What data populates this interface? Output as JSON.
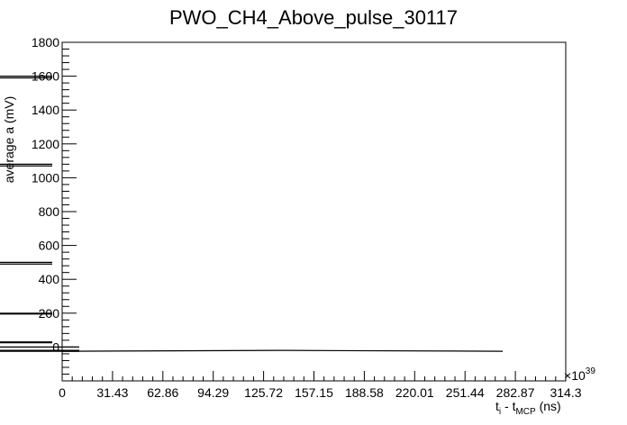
{
  "chart_data": {
    "type": "line",
    "title": "PWO_CH4_Above_pulse_30117",
    "ylabel": "average a  (mV)",
    "xlabel": {
      "main": "t",
      "sub1": "i",
      "mid": " - t",
      "sub2": "MCP",
      "unit": " (ns)"
    },
    "x_multiplier": {
      "symbol": "×",
      "base": "10",
      "exponent": "39"
    },
    "xlim": [
      0,
      314.3
    ],
    "ylim": [
      -200,
      1800
    ],
    "x_tick_labels": [
      "0",
      "31.43",
      "62.86",
      "94.29",
      "125.72",
      "157.15",
      "188.58",
      "220.01",
      "251.44",
      "282.87",
      "314.3"
    ],
    "y_tick_labels": [
      "0",
      "200",
      "400",
      "600",
      "800",
      "1000",
      "1200",
      "1400",
      "1600",
      "1800"
    ],
    "grid": false,
    "series": [
      {
        "points": [
          {
            "x": 0,
            "y": 1600
          },
          {
            "x": 0,
            "y": 1590
          },
          {
            "x": 0,
            "y": 1080
          },
          {
            "x": 0,
            "y": 1070
          },
          {
            "x": 0,
            "y": 500
          },
          {
            "x": 0,
            "y": 490
          },
          {
            "x": 0,
            "y": 200
          },
          {
            "x": 0,
            "y": 195
          },
          {
            "x": 0,
            "y": 30
          },
          {
            "x": 0,
            "y": 25
          },
          {
            "x": 0,
            "y": 0
          },
          {
            "x": 0,
            "y": -20
          },
          {
            "x": 0,
            "y": -25
          },
          {
            "x": 137,
            "y": -20
          },
          {
            "x": 275,
            "y": -25
          }
        ]
      }
    ]
  }
}
